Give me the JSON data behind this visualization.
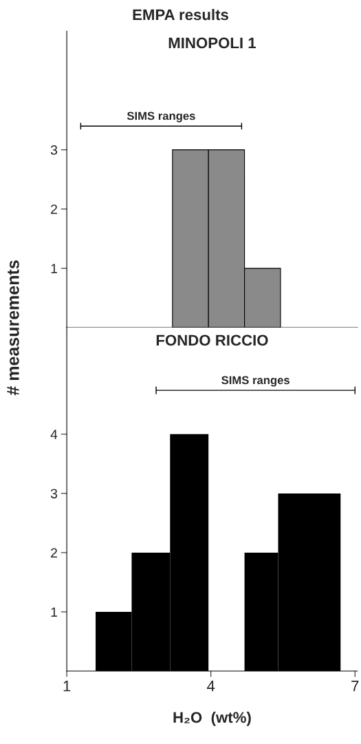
{
  "chart_data": [
    {
      "type": "histogram",
      "title": "MINOPOLI 1",
      "annotations": [
        "EMPA results"
      ],
      "ylabel": "# measurements",
      "bins": [
        3.2,
        3.95,
        4.7,
        5.45
      ],
      "values": [
        3,
        3,
        1
      ],
      "color": "#8a8a8a",
      "xlim": [
        1,
        7.05
      ],
      "ylim": [
        0,
        5
      ],
      "yticks": [
        1,
        2,
        3
      ],
      "tick_labels": "y",
      "series": [
        {
          "type": "line",
          "name": "SIMS ranges",
          "color": "#000000",
          "x": [
            1.29,
            4.64
          ],
          "values": [
            3.4,
            3.4
          ]
        }
      ]
    },
    {
      "type": "histogram",
      "title": "FONDO RICCIO",
      "xlabel": "H₂O  (wt%)",
      "bins": [
        1.6,
        2.35,
        3.15,
        3.95,
        4.7,
        5.4,
        6.7
      ],
      "values": [
        1,
        2,
        4,
        0,
        2,
        3
      ],
      "color": "#000000",
      "xlim": [
        1,
        7.05
      ],
      "ylim": [
        0,
        5.8
      ],
      "xticks": [
        1,
        4,
        7
      ],
      "yticks": [
        1,
        2,
        3,
        4
      ],
      "series": [
        {
          "type": "line",
          "name": "SIMS ranges",
          "color": "#000000",
          "x": [
            2.86,
            7.0
          ],
          "values": [
            4.74,
            4.74
          ]
        }
      ]
    }
  ]
}
